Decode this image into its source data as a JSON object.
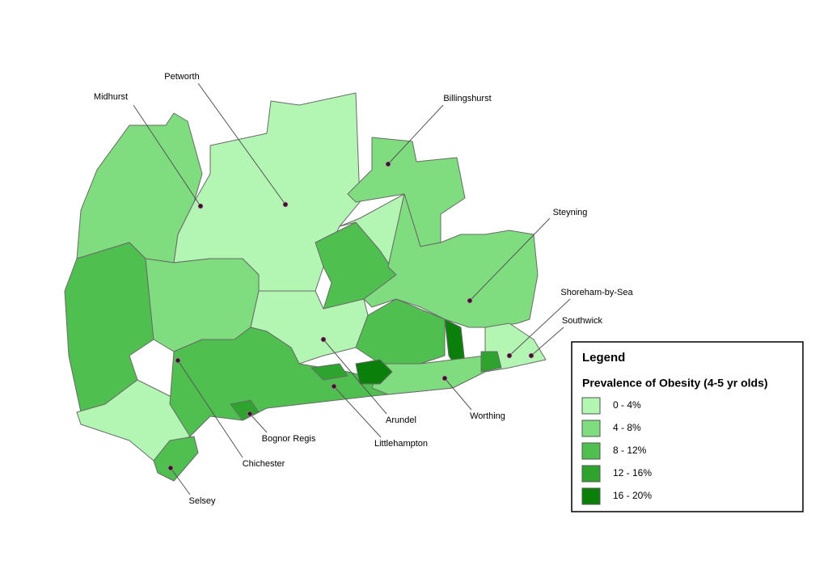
{
  "towns": [
    "Midhurst",
    "Petworth",
    "Billingshurst",
    "Steyning",
    "Shoreham-by-Sea",
    "Southwick",
    "Worthing",
    "Arundel",
    "Littlehampton",
    "Bognor Regis",
    "Chichester",
    "Selsey"
  ],
  "legend": {
    "title": "Legend",
    "subtitle": "Prevalence of Obesity (4-5 yr olds)",
    "items": [
      {
        "label": "0 - 4%",
        "color": "#b3f5b3"
      },
      {
        "label": "4 - 8%",
        "color": "#7fdc7f"
      },
      {
        "label": "8 - 12%",
        "color": "#4fbf4f"
      },
      {
        "label": "12 - 16%",
        "color": "#2ea42e"
      },
      {
        "label": "16 - 20%",
        "color": "#0a7f0a"
      }
    ]
  }
}
